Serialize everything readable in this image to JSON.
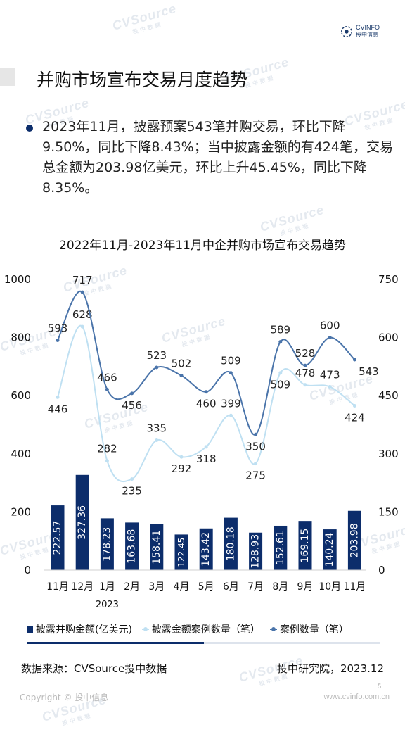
{
  "header": {
    "logo_text": "CVINFO",
    "logo_sub": "投中信息"
  },
  "title": "并购市场宣布交易月度趋势",
  "summary": "2023年11月，披露预案543笔并购交易，环比下降9.50%，同比下降8.43%；当中披露金额的有424笔，交易总金额为203.98亿美元，环比上升45.45%，同比下降8.35%。",
  "chart_data": {
    "type": "bar",
    "title": "2022年11月-2023年11月中企并购市场宣布交易趋势",
    "categories": [
      "11月",
      "12月",
      "1月",
      "2月",
      "3月",
      "4月",
      "5月",
      "6月",
      "7月",
      "8月",
      "9月",
      "10月",
      "11月"
    ],
    "year_label": "2023",
    "year_under_category": "1月",
    "left_axis": {
      "min": 0,
      "max": 1000,
      "ticks": [
        0,
        200,
        400,
        600,
        800,
        1000
      ]
    },
    "right_axis": {
      "min": 0,
      "max": 750,
      "ticks": [
        0,
        150,
        300,
        450,
        600,
        750
      ]
    },
    "series": [
      {
        "name": "披露并购金额(亿美元)",
        "kind": "bar",
        "axis": "left",
        "color": "#0c2d6b",
        "values": [
          222.57,
          327.36,
          178.23,
          163.68,
          158.41,
          122.45,
          143.42,
          180.18,
          128.93,
          152.61,
          169.15,
          140.24,
          203.98
        ],
        "labels": [
          "222.57",
          "327.36",
          "178.23",
          "163.68",
          "158.41",
          "122.45",
          "143.42",
          "180.18",
          "128.93",
          "152.61",
          "169.15",
          "140.24",
          "203.98"
        ]
      },
      {
        "name": "披露金额案例数量（笔）",
        "kind": "line",
        "axis": "right",
        "color": "#bfe0f2",
        "values": [
          446,
          628,
          282,
          235,
          335,
          292,
          318,
          399,
          275,
          509,
          478,
          473,
          424
        ]
      },
      {
        "name": "案例数量（笔）",
        "kind": "line",
        "axis": "right",
        "color": "#4a74aa",
        "values": [
          593,
          717,
          466,
          456,
          523,
          502,
          460,
          509,
          350,
          589,
          528,
          600,
          543
        ]
      }
    ],
    "legend": "bottom",
    "grid": false
  },
  "footer": {
    "source": "数据来源：CVSource投中数据",
    "org": "投中研究院，2023.12",
    "page": "5",
    "copyright": "Copyright © 投中信息",
    "site": "www.cvinfo.com.cn"
  },
  "watermark": {
    "text": "CVSource",
    "sub": "投中数据"
  }
}
